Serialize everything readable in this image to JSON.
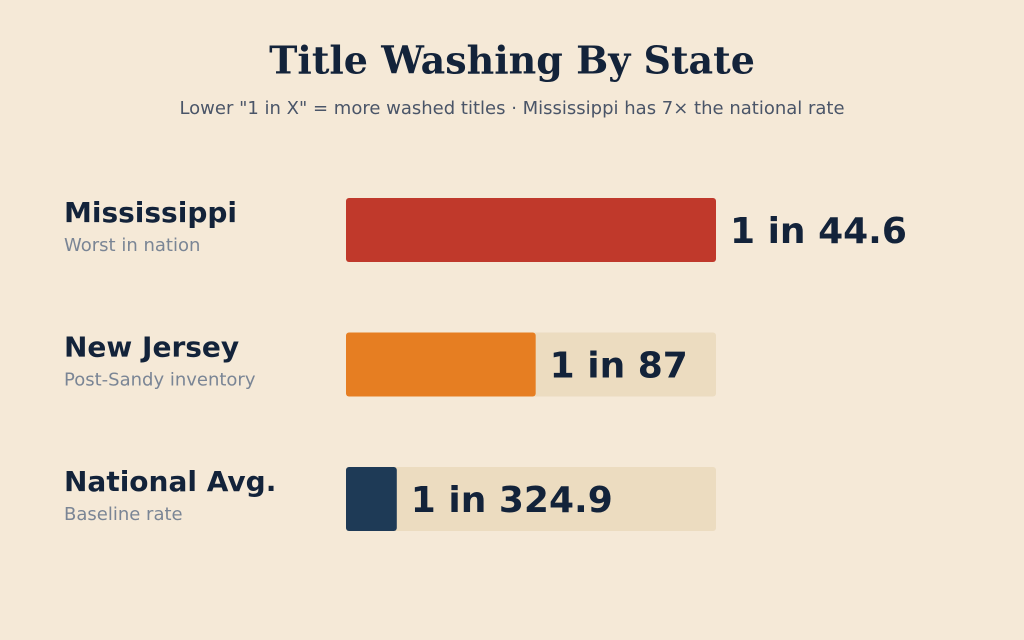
{
  "chart_data": {
    "type": "bar",
    "title": "Title Washing By State",
    "subtitle": "Lower \"1 in X\" = more washed titles · Mississippi has 7× the national rate",
    "categories": [
      "Mississippi",
      "New Jersey",
      "National Avg."
    ],
    "notes": [
      "Worst in nation",
      "Post-Sandy inventory",
      "Baseline rate"
    ],
    "values": [
      44.6,
      87,
      324.9
    ],
    "value_labels": [
      "1 in 44.6",
      "1 in 87",
      "1 in 324.9"
    ],
    "colors": [
      "#c0392b",
      "#e67e22",
      "#1e3a56"
    ]
  }
}
